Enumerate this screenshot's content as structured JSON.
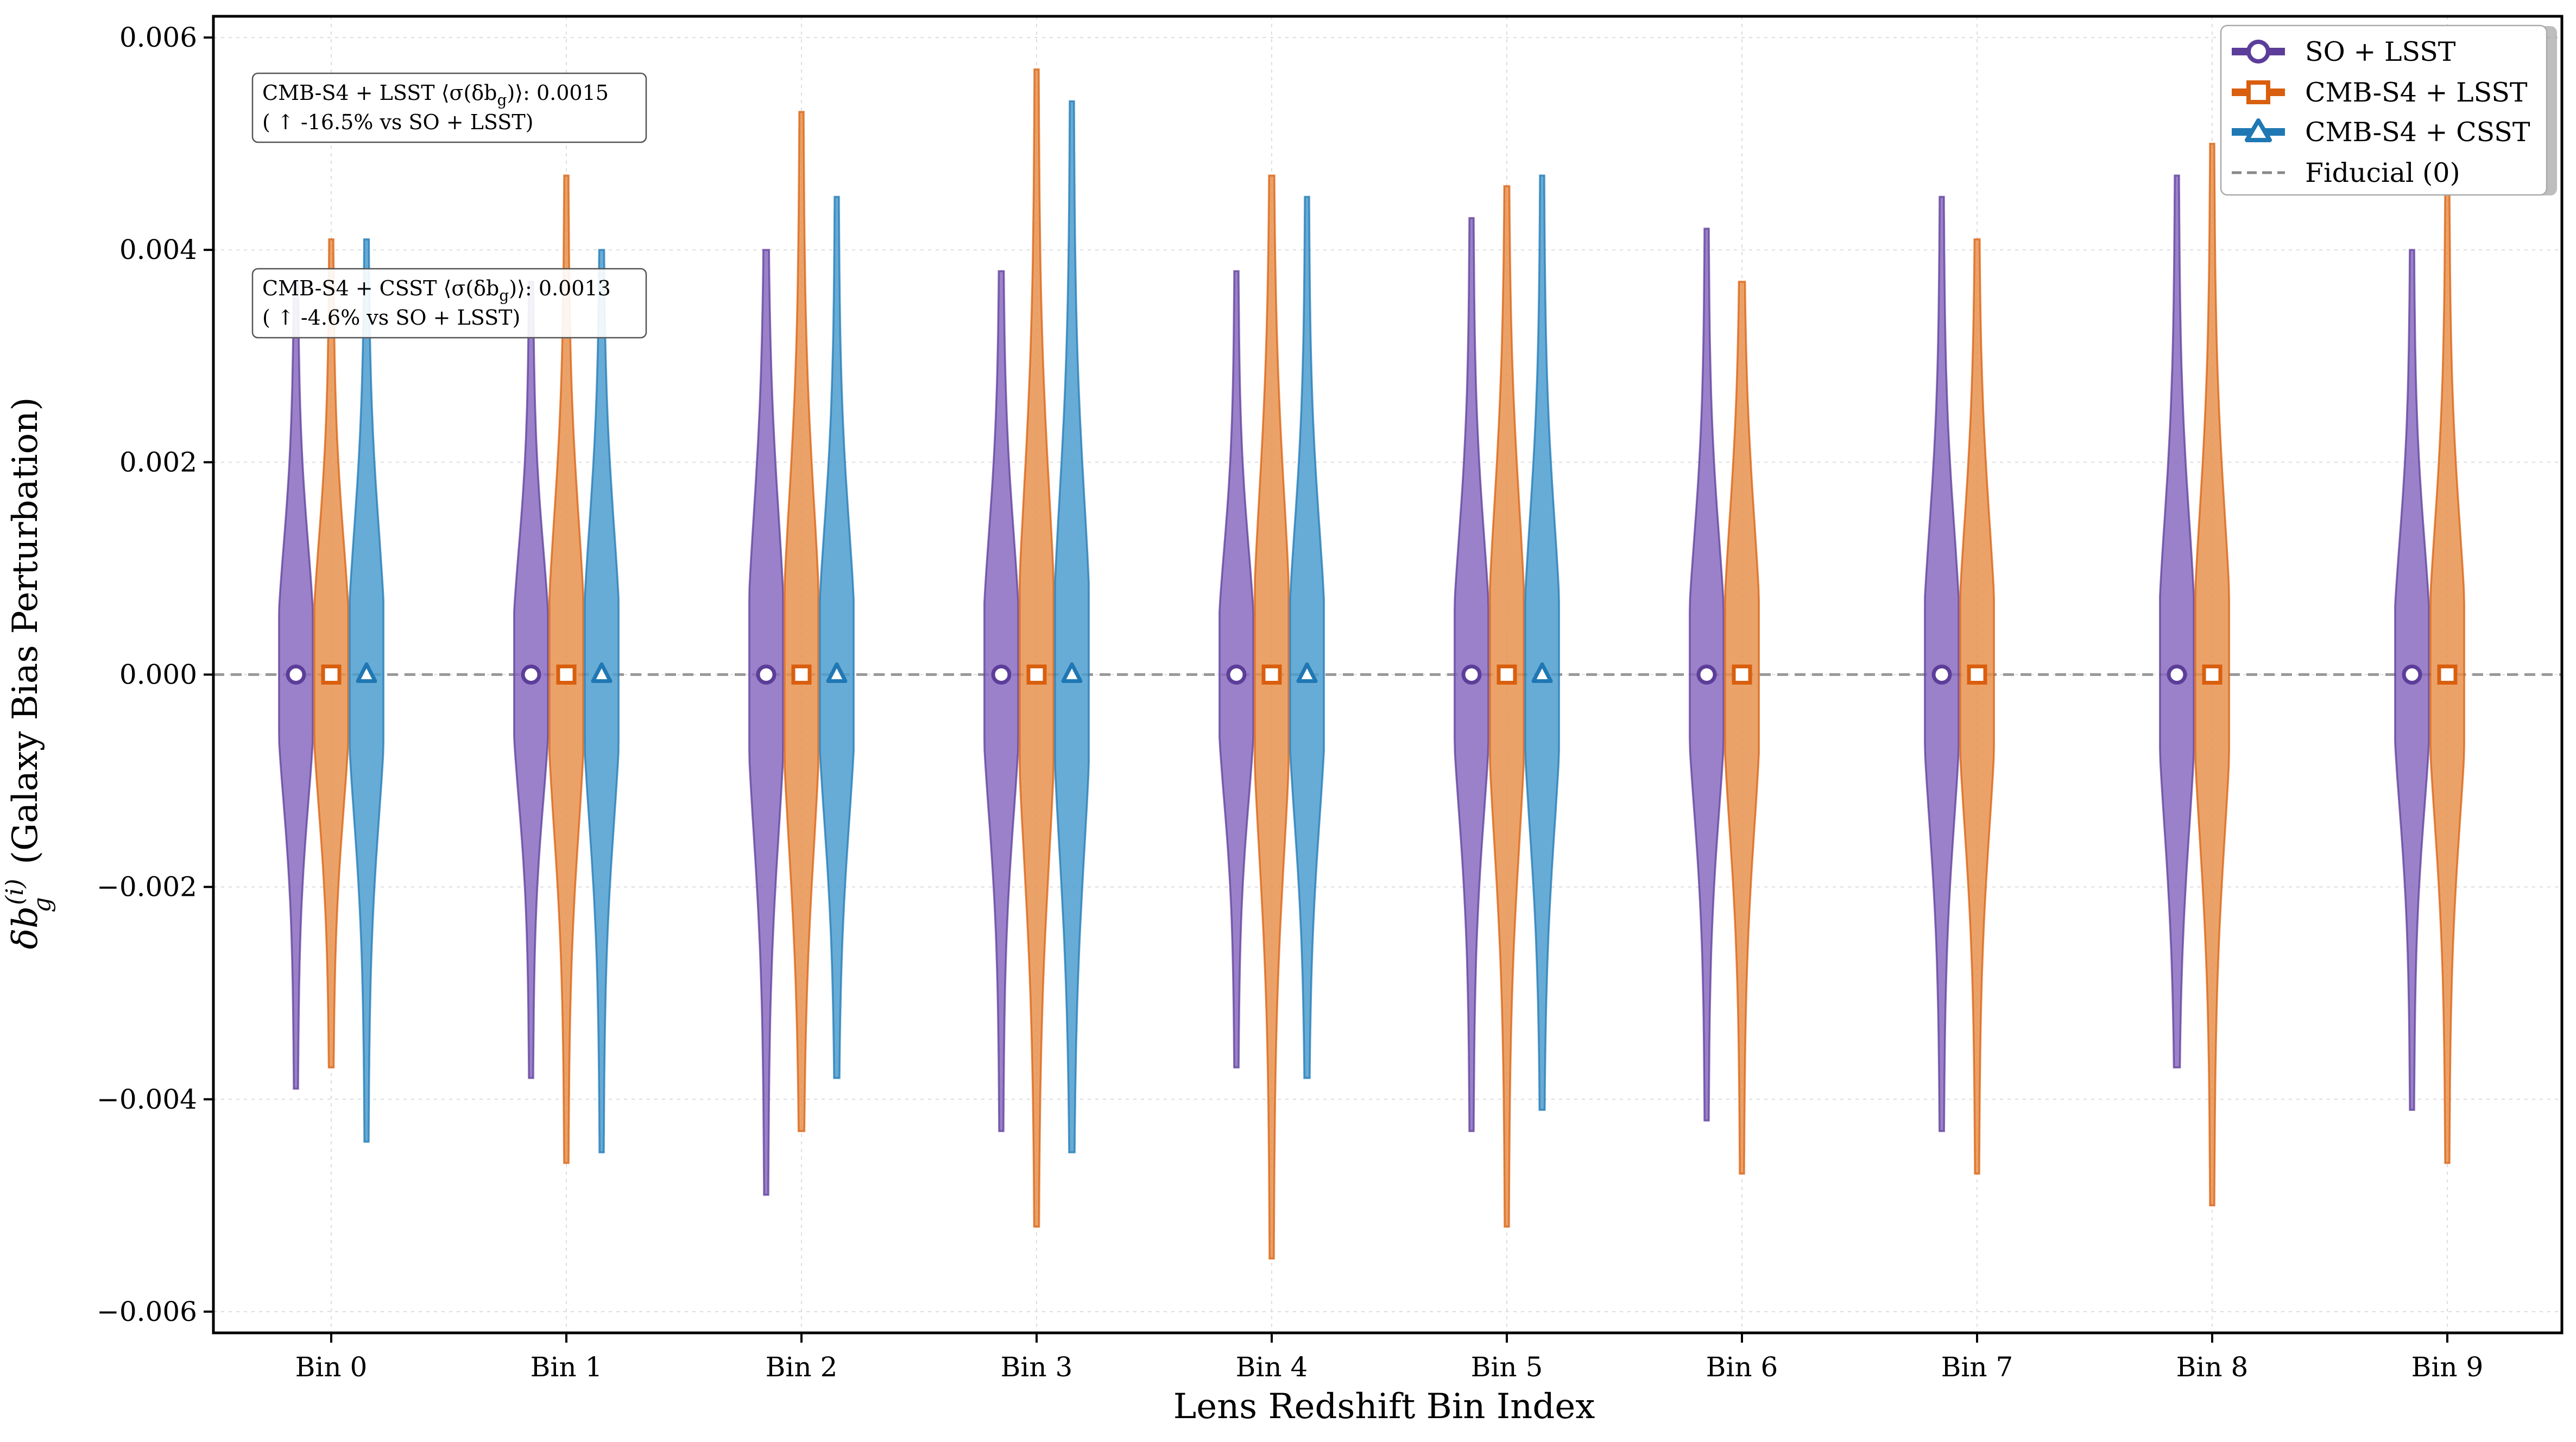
{
  "chart_data": {
    "type": "violin",
    "xlabel": "Lens Redshift Bin Index",
    "ylabel_prefix": "δb",
    "ylabel_sub": "g",
    "ylabel_sup": "(i)",
    "ylabel_suffix": " (Galaxy Bias Perturbation)",
    "ylim": [
      -0.0062,
      0.0062
    ],
    "yticks": [
      -0.006,
      -0.004,
      -0.002,
      0.0,
      0.002,
      0.004,
      0.006
    ],
    "ytick_labels": [
      "−0.006",
      "−0.004",
      "−0.002",
      "0.000",
      "0.002",
      "0.004",
      "0.006"
    ],
    "categories": [
      "Bin 0",
      "Bin 1",
      "Bin 2",
      "Bin 3",
      "Bin 4",
      "Bin 5",
      "Bin 6",
      "Bin 7",
      "Bin 8",
      "Bin 9"
    ],
    "grid": true,
    "fiducial": 0,
    "legend_position": "top-right",
    "series": [
      {
        "name": "SO + LSST",
        "color": "#5c3d99",
        "fill": "#8a6bbf",
        "marker": "circle",
        "median": [
          0,
          0,
          0,
          0,
          0,
          0,
          0,
          0,
          0,
          0
        ],
        "min": [
          -0.0039,
          -0.0038,
          -0.0049,
          -0.0043,
          -0.0037,
          -0.0043,
          -0.0042,
          -0.0043,
          -0.0037,
          -0.0041
        ],
        "max": [
          0.0037,
          0.0037,
          0.004,
          0.0038,
          0.0038,
          0.0043,
          0.0042,
          0.0045,
          0.0047,
          0.004
        ]
      },
      {
        "name": "CMB-S4 + LSST",
        "color": "#d95f0e",
        "fill": "#e8924f",
        "marker": "square",
        "median": [
          0,
          0,
          0,
          0,
          0,
          0,
          0,
          0,
          0,
          0
        ],
        "min": [
          -0.0037,
          -0.0046,
          -0.0043,
          -0.0052,
          -0.0055,
          -0.0052,
          -0.0047,
          -0.0047,
          -0.005,
          -0.0046
        ],
        "max": [
          0.0041,
          0.0047,
          0.0053,
          0.0057,
          0.0047,
          0.0046,
          0.0037,
          0.0041,
          0.005,
          0.0046
        ]
      },
      {
        "name": "CMB-S4 + CSST",
        "color": "#1f78b4",
        "fill": "#4c9ecf",
        "marker": "triangle",
        "median": [
          0,
          0,
          0,
          0,
          0,
          0,
          null,
          null,
          null,
          null
        ],
        "min": [
          -0.0044,
          -0.0045,
          -0.0038,
          -0.0045,
          -0.0038,
          -0.0041,
          null,
          null,
          null,
          null
        ],
        "max": [
          0.0041,
          0.004,
          0.0045,
          0.0054,
          0.0045,
          0.0047,
          null,
          null,
          null,
          null
        ]
      }
    ],
    "fiducial_label": "Fiducial (0)",
    "annotations": [
      {
        "line1_prefix": "CMB-S4 + LSST ⟨σ(δb",
        "line1_sub": "g",
        "line1_suffix": ")⟩: 0.0015",
        "line2": "( ↑ -16.5% vs SO + LSST)"
      },
      {
        "line1_prefix": "CMB-S4 + CSST ⟨σ(δb",
        "line1_sub": "g",
        "line1_suffix": ")⟩: 0.0013",
        "line2": "( ↑ -4.6% vs SO + LSST)"
      }
    ]
  }
}
